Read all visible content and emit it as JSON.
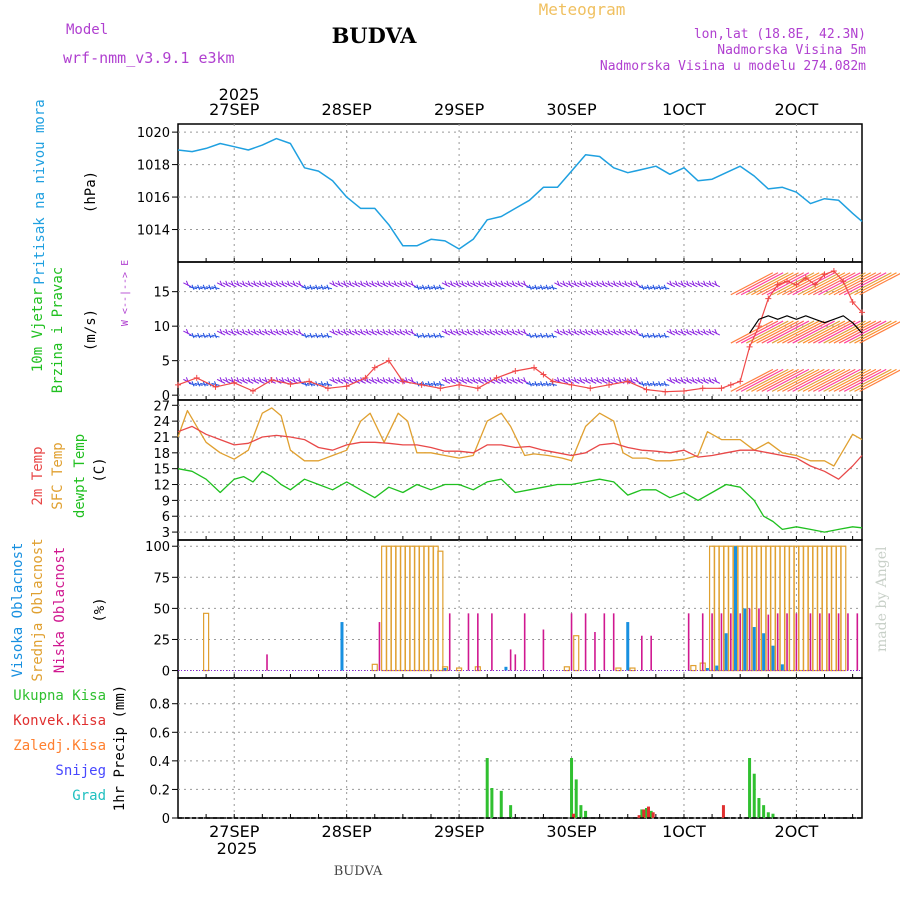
{
  "header": {
    "model_label": "Model",
    "model_name": "wrf-nmm_v3.9.1 e3km",
    "title": "BUDVA",
    "meteogram_label": "Meteogram",
    "lonlat": "lon,lat (18.8E, 42.3N)",
    "elevation": "Nadmorska Visina 5m",
    "model_elevation": "Nadmorska Visina u modelu 274.082m",
    "footer_city": "BUDVA",
    "credit": "made by Angel"
  },
  "time_axis": {
    "top_year": "2025",
    "bottom_year": "2025",
    "day_labels": [
      "27SEP",
      "28SEP",
      "29SEP",
      "30SEP",
      "1OCT",
      "2OCT"
    ],
    "day_start_hours": [
      0,
      24,
      48,
      72,
      96,
      120
    ],
    "range_hours": [
      -12,
      134
    ]
  },
  "colors": {
    "pressure": "#1fa0e0",
    "temp2m": "#e84848",
    "sfc_temp": "#e0a030",
    "dewpoint": "#20c020",
    "high_cloud": "#1890e0",
    "mid_cloud": "#e0a030",
    "low_cloud": "#d01890",
    "total_precip": "#30c030",
    "conv_precip": "#e03030",
    "frozen_precip": "#ff8030",
    "snow": "#4848ff",
    "graupel": "#20c0c0",
    "wind_label": "#20c020",
    "wind_barb_primary": "#8a20e0",
    "wind_barb_secondary": "#2050e0"
  },
  "chart_data": [
    {
      "id": "pressure",
      "type": "line",
      "title": "Pritisak na nivou mora",
      "ylabel": "(hPa)",
      "ylim": [
        1012,
        1020.5
      ],
      "yticks": [
        1014,
        1016,
        1018,
        1020
      ],
      "series": [
        {
          "name": "Sea level pressure",
          "x": [
            -12,
            -9,
            -6,
            -3,
            0,
            3,
            6,
            9,
            12,
            15,
            18,
            21,
            24,
            27,
            30,
            33,
            36,
            39,
            42,
            45,
            48,
            51,
            54,
            57,
            60,
            63,
            66,
            69,
            72,
            75,
            78,
            81,
            84,
            87,
            90,
            93,
            96,
            99,
            102,
            105,
            108,
            111,
            114,
            117,
            120,
            123,
            126,
            129,
            132,
            134
          ],
          "y": [
            1018.9,
            1018.8,
            1019.0,
            1019.3,
            1019.1,
            1018.9,
            1019.2,
            1019.6,
            1019.3,
            1017.8,
            1017.6,
            1017.0,
            1016.0,
            1015.3,
            1015.3,
            1014.3,
            1013.0,
            1013.0,
            1013.4,
            1013.3,
            1012.8,
            1013.4,
            1014.6,
            1014.8,
            1015.3,
            1015.8,
            1016.6,
            1016.6,
            1017.6,
            1018.6,
            1018.5,
            1017.8,
            1017.5,
            1017.7,
            1017.9,
            1017.4,
            1017.8,
            1017.0,
            1017.1,
            1017.5,
            1017.9,
            1017.3,
            1016.5,
            1016.6,
            1016.3,
            1015.6,
            1015.9,
            1015.8,
            1015.0,
            1014.5
          ]
        }
      ]
    },
    {
      "id": "wind",
      "type": "line",
      "title": "10m Vjetar",
      "title2": "Brzina i Pravac",
      "ylabel": "(m/s)",
      "compass": "W  <--|-->  E",
      "ylim": [
        -0.7,
        19.3
      ],
      "yticks": [
        0,
        5,
        10,
        15
      ],
      "barb_rows": [
        16,
        9,
        2
      ],
      "series": [
        {
          "name": "Wind speed",
          "x": [
            -12,
            -8,
            -4,
            0,
            4,
            8,
            12,
            16,
            20,
            24,
            28,
            30,
            33,
            36,
            40,
            44,
            48,
            52,
            56,
            60,
            64,
            66,
            68,
            72,
            76,
            80,
            84,
            88,
            92,
            96,
            100,
            104,
            106,
            108,
            110,
            112,
            114,
            116,
            118,
            120,
            122,
            124,
            126,
            128,
            130,
            132,
            134
          ],
          "y": [
            1.5,
            2.5,
            1.2,
            1.8,
            0.6,
            2.2,
            1.6,
            2.0,
            1.0,
            1.3,
            2.5,
            4.0,
            5.0,
            2.0,
            1.5,
            1.0,
            1.5,
            1.0,
            2.5,
            3.5,
            4.0,
            3.0,
            2.0,
            1.5,
            1.0,
            1.5,
            2.0,
            0.8,
            0.5,
            0.6,
            1.0,
            1.0,
            1.5,
            2.0,
            7.0,
            10.0,
            14.0,
            16.0,
            16.5,
            16.0,
            17.0,
            16.0,
            17.5,
            18.0,
            16.5,
            13.5,
            12.0
          ]
        },
        {
          "name": "Wind gust",
          "x": [
            110,
            112,
            114,
            116,
            118,
            120,
            122,
            124,
            126,
            128,
            130,
            132,
            134
          ],
          "y": [
            9.0,
            11.0,
            11.5,
            11.0,
            11.5,
            11.0,
            11.5,
            11.0,
            10.5,
            11.0,
            11.5,
            10.5,
            9.0
          ]
        }
      ]
    },
    {
      "id": "temperature",
      "type": "line",
      "titles": [
        "2m Temp",
        "SFC Temp",
        "dewpt Temp"
      ],
      "ylabel": "(C)",
      "ylim": [
        1.5,
        28
      ],
      "yticks": [
        3,
        6,
        9,
        12,
        15,
        18,
        21,
        24,
        27
      ],
      "series": [
        {
          "name": "2m Temp",
          "x": [
            -12,
            -9,
            -6,
            -3,
            0,
            3,
            6,
            9,
            12,
            15,
            18,
            21,
            24,
            27,
            30,
            33,
            36,
            39,
            42,
            45,
            48,
            51,
            54,
            57,
            60,
            63,
            66,
            69,
            72,
            75,
            78,
            81,
            84,
            87,
            90,
            93,
            96,
            99,
            102,
            105,
            108,
            111,
            114,
            117,
            120,
            123,
            126,
            129,
            132,
            134
          ],
          "y": [
            22.0,
            23.0,
            21.5,
            20.5,
            19.5,
            19.8,
            21.0,
            21.3,
            21.0,
            20.5,
            19.0,
            18.5,
            19.5,
            20.0,
            20.0,
            19.8,
            19.5,
            19.5,
            19.0,
            18.3,
            18.3,
            18.0,
            19.5,
            19.5,
            19.0,
            19.2,
            18.5,
            18.0,
            17.5,
            18.0,
            19.5,
            19.8,
            19.0,
            18.5,
            18.3,
            18.0,
            18.5,
            17.2,
            17.5,
            18.0,
            18.5,
            18.5,
            18.0,
            17.5,
            17.0,
            15.5,
            14.5,
            13.0,
            15.5,
            17.5
          ]
        },
        {
          "name": "SFC Temp",
          "x": [
            -12,
            -10,
            -8,
            -6,
            -3,
            0,
            3,
            6,
            8,
            10,
            12,
            15,
            18,
            21,
            24,
            27,
            29,
            32,
            35,
            37,
            39,
            42,
            45,
            48,
            51,
            54,
            57,
            59,
            62,
            64,
            67,
            70,
            72,
            75,
            78,
            81,
            83,
            85,
            88,
            90,
            93,
            96,
            99,
            101,
            104,
            108,
            111,
            114,
            117,
            120,
            123,
            126,
            128,
            130,
            132,
            134
          ],
          "y": [
            21.0,
            26.0,
            23.0,
            20.0,
            18.0,
            16.8,
            18.5,
            25.5,
            26.5,
            25.0,
            18.5,
            16.5,
            16.5,
            17.5,
            18.5,
            24.0,
            25.5,
            20.0,
            25.5,
            24.0,
            18.0,
            18.0,
            17.5,
            17.0,
            17.5,
            24.0,
            25.5,
            23.0,
            17.5,
            17.8,
            17.5,
            17.0,
            16.5,
            23.0,
            25.5,
            24.0,
            18.0,
            17.0,
            17.0,
            16.5,
            16.5,
            16.8,
            17.5,
            22.0,
            20.5,
            20.5,
            18.5,
            20.0,
            18.0,
            17.5,
            16.5,
            16.5,
            15.5,
            18.5,
            21.5,
            20.5
          ]
        },
        {
          "name": "dewpt Temp",
          "x": [
            -12,
            -9,
            -6,
            -3,
            0,
            2,
            4,
            6,
            8,
            10,
            12,
            15,
            18,
            21,
            24,
            27,
            30,
            33,
            36,
            39,
            42,
            45,
            48,
            51,
            54,
            57,
            60,
            63,
            66,
            69,
            72,
            75,
            78,
            81,
            84,
            87,
            90,
            93,
            96,
            99,
            102,
            105,
            108,
            111,
            113,
            115,
            117,
            120,
            123,
            126,
            129,
            132,
            134
          ],
          "y": [
            15.0,
            14.5,
            13.0,
            10.5,
            13.0,
            13.5,
            12.5,
            14.5,
            13.5,
            12.0,
            11.0,
            13.0,
            12.0,
            11.0,
            12.5,
            11.0,
            9.5,
            11.5,
            10.5,
            12.0,
            11.0,
            12.0,
            12.0,
            11.0,
            12.5,
            13.0,
            10.5,
            11.0,
            11.5,
            12.0,
            12.0,
            12.5,
            13.0,
            12.5,
            10.0,
            11.0,
            11.0,
            9.5,
            10.5,
            9.0,
            10.5,
            12.0,
            11.5,
            9.0,
            6.0,
            5.0,
            3.5,
            4.0,
            3.5,
            3.0,
            3.5,
            4.0,
            3.8
          ]
        }
      ]
    },
    {
      "id": "clouds",
      "type": "bar",
      "titles": [
        "Visoka Oblacnost",
        "Srednja Oblacnost",
        "Niska Oblacnost"
      ],
      "ylabel": "(%)",
      "ylim": [
        -6,
        105
      ],
      "yticks": [
        0,
        25,
        50,
        75,
        100
      ],
      "series": [
        {
          "name": "Visoka Oblacnost",
          "x": [
            23,
            45,
            58,
            84,
            101,
            103,
            105,
            107,
            109,
            111,
            113,
            115,
            117
          ],
          "values": [
            39,
            2,
            3,
            39,
            2,
            4,
            30,
            100,
            50,
            35,
            30,
            20,
            5
          ]
        },
        {
          "name": "Srednja Oblacnost",
          "x": [
            -6,
            30,
            32,
            33,
            34,
            35,
            36,
            37,
            38,
            39,
            40,
            41,
            42,
            43,
            44,
            45,
            48,
            52,
            71,
            73,
            82,
            85,
            98,
            100,
            102,
            103,
            104,
            105,
            106,
            107,
            108,
            109,
            110,
            111,
            112,
            113,
            114,
            115,
            116,
            117,
            118,
            119,
            120,
            121,
            122,
            123,
            124,
            125,
            126,
            127,
            128,
            129,
            130
          ],
          "values": [
            46,
            5,
            100,
            100,
            100,
            100,
            100,
            100,
            100,
            100,
            100,
            100,
            100,
            100,
            96,
            3,
            2,
            3,
            3,
            28,
            2,
            2,
            4,
            6,
            100,
            100,
            100,
            100,
            100,
            100,
            100,
            100,
            100,
            100,
            100,
            100,
            100,
            100,
            100,
            100,
            100,
            100,
            100,
            100,
            100,
            100,
            100,
            100,
            100,
            100,
            100,
            100,
            100
          ]
        },
        {
          "name": "Niska Oblacnost",
          "x": [
            7,
            31,
            46,
            50,
            52,
            55,
            59,
            60,
            62,
            66,
            72,
            75,
            77,
            79,
            81,
            87,
            89,
            97,
            100,
            102,
            104,
            106,
            108,
            110,
            112,
            114,
            116,
            118,
            120,
            123,
            125,
            127,
            129,
            131,
            133
          ],
          "values": [
            13,
            39,
            46,
            46,
            46,
            46,
            17,
            13,
            46,
            33,
            46,
            46,
            31,
            46,
            46,
            28,
            28,
            46,
            46,
            46,
            46,
            46,
            46,
            50,
            50,
            45,
            46,
            46,
            46,
            46,
            46,
            46,
            46,
            46,
            46
          ]
        }
      ]
    },
    {
      "id": "precip",
      "type": "bar",
      "titles": [
        "Ukupna Kisa",
        "Konvek.Kisa",
        "Zaledj.Kisa",
        "Snijeg",
        "Grad"
      ],
      "ylabel": "1hr Precip (mm)",
      "ylim": [
        0,
        0.98
      ],
      "yticks": [
        0,
        0.2,
        0.4,
        0.6,
        0.8
      ],
      "series": [
        {
          "name": "Ukupna Kisa",
          "x": [
            54,
            55,
            57,
            59,
            72,
            73,
            74,
            75,
            87,
            88,
            89,
            110,
            111,
            112,
            113,
            114,
            115
          ],
          "values": [
            0.42,
            0.21,
            0.19,
            0.09,
            0.42,
            0.27,
            0.09,
            0.05,
            0.06,
            0.07,
            0.05,
            0.42,
            0.31,
            0.14,
            0.09,
            0.04,
            0.03
          ]
        },
        {
          "name": "Konvek.Kisa",
          "x": [
            72,
            86,
            87,
            88,
            89,
            104
          ],
          "values": [
            0.03,
            0.02,
            0.06,
            0.08,
            0.04,
            0.09
          ]
        }
      ]
    }
  ]
}
